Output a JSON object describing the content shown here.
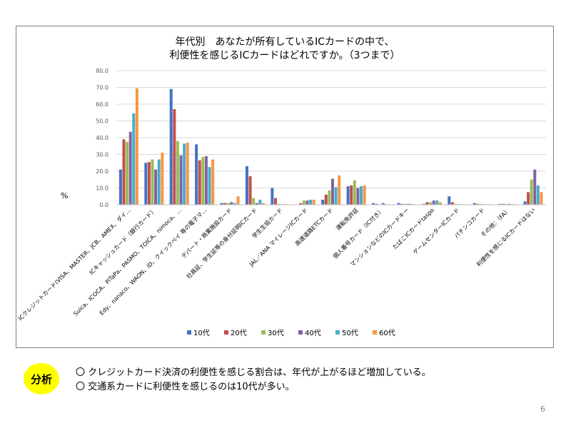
{
  "chart_data": {
    "type": "bar",
    "title": [
      "年代別　あなたが所有しているICカードの中で、",
      "利便性を感じるICカードはどれですか。（3つまで）"
    ],
    "ylabel": "%",
    "ylim": [
      0,
      80
    ],
    "yticks": [
      "0.0",
      "10.0",
      "20.0",
      "30.0",
      "40.0",
      "50.0",
      "60.0",
      "70.0",
      "80.0"
    ],
    "grid": true,
    "legend_position": "bottom",
    "categories": [
      "ICクレジットカード(VISA、MASTER、JCB、AMEX、ダイ…",
      "ICキャッシュカード（銀行カード）",
      "Suica、ICOCA、PiTaPa、PASMO、TOICA、nimoca、…",
      "Edy、nanaco、WAON、iD、クイックペイ 等の電子マ…",
      "デパート・商業施設カード",
      "社員証、学生証等の身分証明ICカード",
      "学生生協カード",
      "JAL／ANA マイレージICカード",
      "高速道路ETCカード",
      "運転免許証",
      "個人番号カード（IC付き）",
      "マンションなどのICカードキー",
      "たばこICカードtaspo",
      "ゲームセンターICカード",
      "パチンコカード",
      "その他：（FA）",
      "利便性を感じるICカードはない"
    ],
    "series": [
      {
        "name": "10代",
        "color": "#4472c4",
        "values": [
          21,
          25,
          69,
          36,
          1,
          23,
          10,
          0,
          3,
          11,
          1,
          1,
          0.5,
          5,
          1,
          0.5,
          2
        ]
      },
      {
        "name": "20代",
        "color": "#c0504d",
        "values": [
          39,
          25.5,
          57,
          26.5,
          1,
          17,
          4,
          1,
          6,
          11.5,
          0.5,
          0.5,
          1.5,
          1.5,
          0.5,
          0.5,
          7.5
        ]
      },
      {
        "name": "30代",
        "color": "#9bbb59",
        "values": [
          37.5,
          27,
          38,
          28.5,
          1,
          4,
          0.5,
          2.5,
          8.5,
          14.5,
          0.3,
          0.5,
          1.5,
          0.5,
          0.5,
          0.5,
          15
        ]
      },
      {
        "name": "40代",
        "color": "#8064a2",
        "values": [
          43.5,
          21,
          29.5,
          29,
          1.5,
          1,
          0.3,
          2.5,
          15.5,
          10,
          1,
          0.5,
          2.5,
          0.3,
          0.3,
          0.5,
          21
        ]
      },
      {
        "name": "50代",
        "color": "#4bacc6",
        "values": [
          54.5,
          27,
          36.5,
          22.5,
          1,
          3,
          0.3,
          3,
          10.5,
          11,
          0.3,
          0.5,
          2.5,
          0.3,
          0.3,
          0.3,
          11.5
        ]
      },
      {
        "name": "60代",
        "color": "#f79646",
        "values": [
          69.5,
          31,
          37,
          27,
          5,
          1,
          0.3,
          3,
          17.5,
          11.5,
          0.3,
          0.3,
          1.5,
          0.3,
          0.3,
          0.3,
          7.5
        ]
      }
    ]
  },
  "analysis": {
    "badge": "分析",
    "lines": [
      "〇 クレジットカード決済の利便性を感じる割合は、年代が上がるほど増加している。",
      "〇 交通系カードに利便性を感じるのは10代が多い。"
    ]
  },
  "page_number": "6"
}
